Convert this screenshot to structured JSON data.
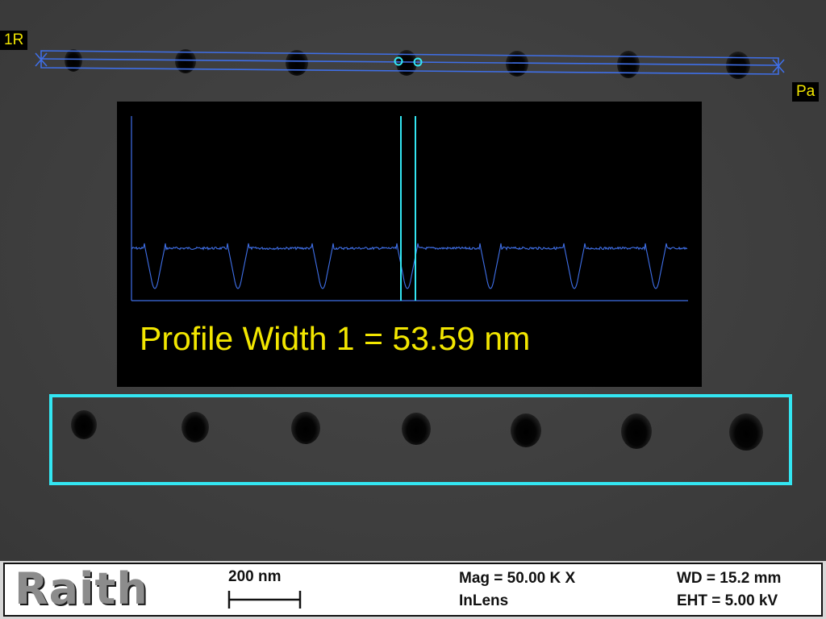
{
  "image": {
    "markers": {
      "left_marker": "1R",
      "right_marker": "Pa"
    },
    "profile": {
      "caption": "Profile Width 1 = 53.59 nm"
    },
    "colors": {
      "marker_text": "#f2e600",
      "profile_line": "#3f6fe8",
      "cursor_line": "#33e6f2",
      "roi_box": "#33e6f2"
    }
  },
  "info_bar": {
    "logo": "Raith",
    "scale_bar_label": "200 nm",
    "magnification": "Mag =  50.00 K X",
    "detector": "InLens",
    "working_distance": "WD = 15.2 mm",
    "eht": "EHT =  5.00 kV"
  }
}
